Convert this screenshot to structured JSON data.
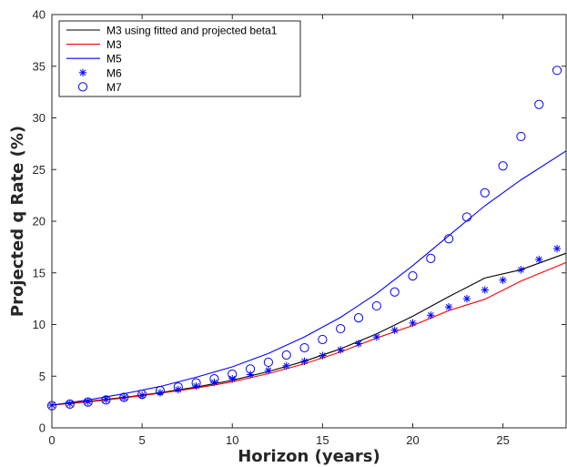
{
  "chart_data": {
    "type": "line",
    "title": "",
    "xlabel": "Horizon (years)",
    "ylabel": "Projected q Rate (%)",
    "xlim": [
      0,
      28.5
    ],
    "ylim": [
      0,
      40
    ],
    "xticks": [
      0,
      5,
      10,
      15,
      20,
      25
    ],
    "yticks": [
      0,
      5,
      10,
      15,
      20,
      25,
      30,
      35,
      40
    ],
    "grid": false,
    "legend_position": "top-left",
    "x": [
      0,
      1,
      2,
      3,
      4,
      5,
      6,
      7,
      8,
      9,
      10,
      11,
      12,
      13,
      14,
      15,
      16,
      17,
      18,
      19,
      20,
      21,
      22,
      23,
      24,
      25,
      26,
      27,
      28
    ],
    "series": [
      {
        "name": "M3 using fitted and projected beta1",
        "style": "line",
        "color": "#000000",
        "x": [
          0,
          2,
          4,
          6,
          8,
          10,
          12,
          14,
          16,
          18,
          20,
          22,
          24,
          26,
          28.5
        ],
        "values": [
          2.2,
          2.55,
          2.95,
          3.4,
          3.95,
          4.6,
          5.45,
          6.45,
          7.65,
          9.1,
          10.8,
          12.7,
          14.5,
          15.3,
          16.9
        ]
      },
      {
        "name": "M3",
        "style": "line",
        "color": "#ff0000",
        "x": [
          0,
          2,
          4,
          6,
          8,
          10,
          12,
          14,
          16,
          18,
          20,
          22,
          24,
          26,
          28.5
        ],
        "values": [
          2.2,
          2.5,
          2.9,
          3.35,
          3.85,
          4.45,
          5.25,
          6.2,
          7.35,
          8.7,
          9.9,
          11.35,
          12.45,
          14.2,
          16.0
        ]
      },
      {
        "name": "M5",
        "style": "line",
        "color": "#0000ff",
        "x": [
          0,
          2,
          4,
          6,
          8,
          10,
          12,
          14,
          16,
          18,
          20,
          22,
          24,
          26,
          28.5
        ],
        "values": [
          2.2,
          2.7,
          3.3,
          4.0,
          4.9,
          5.9,
          7.2,
          8.8,
          10.7,
          13.0,
          15.7,
          18.6,
          21.5,
          24.0,
          26.8
        ]
      },
      {
        "name": "M6",
        "style": "marker-asterisk",
        "color": "#0000ff",
        "values": [
          2.2,
          2.35,
          2.55,
          2.75,
          2.95,
          3.15,
          3.4,
          3.7,
          4.05,
          4.4,
          4.75,
          5.15,
          5.55,
          6.0,
          6.45,
          7.0,
          7.55,
          8.15,
          8.8,
          9.45,
          10.15,
          10.9,
          11.7,
          12.5,
          13.35,
          14.3,
          15.3,
          16.3,
          17.35
        ]
      },
      {
        "name": "M7",
        "style": "marker-circle",
        "color": "#0000ff",
        "values": [
          2.15,
          2.3,
          2.5,
          2.7,
          2.95,
          3.25,
          3.6,
          3.95,
          4.35,
          4.75,
          5.2,
          5.7,
          6.35,
          7.05,
          7.75,
          8.55,
          9.6,
          10.65,
          11.8,
          13.15,
          14.7,
          16.4,
          18.3,
          20.4,
          22.75,
          25.35,
          28.2,
          31.3,
          34.6
        ]
      }
    ]
  }
}
